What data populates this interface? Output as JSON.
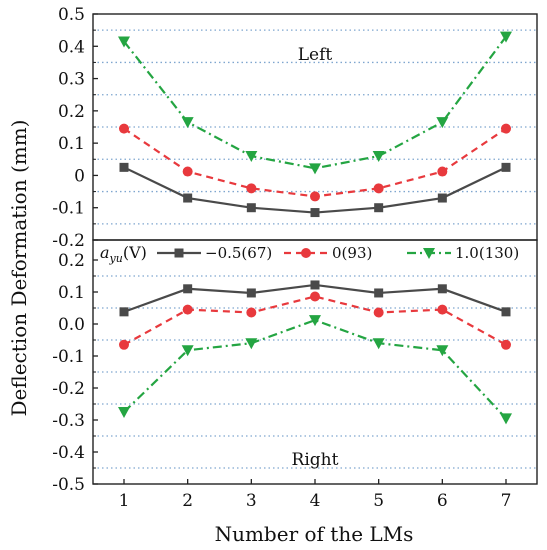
{
  "chart_data": {
    "type": "line",
    "xlabel": "Number of the LMs",
    "ylabel": "Deflection Deformation (mm)",
    "categories": [
      1,
      2,
      3,
      4,
      5,
      6,
      7
    ],
    "x_ticks": [
      "1",
      "2",
      "3",
      "4",
      "5",
      "6",
      "7"
    ],
    "legend": {
      "title_main": "a",
      "title_sub": "yu",
      "title_suffix": "(V)",
      "placement": "between panels, top of lower panel"
    },
    "grid": "horizontal dotted lines at half-ticks",
    "panels": [
      {
        "label": "Left",
        "ylim": [
          -0.2,
          0.5
        ],
        "y_ticks": [
          "-0.2",
          "-0.1",
          "0",
          "0.1",
          "0.2",
          "0.3",
          "0.4",
          "0.5"
        ],
        "y_tick_values": [
          -0.2,
          -0.1,
          0,
          0.1,
          0.2,
          0.3,
          0.4,
          0.5
        ],
        "grid_values": [
          -0.15,
          -0.05,
          0.05,
          0.15,
          0.25,
          0.35,
          0.45
        ],
        "series": [
          {
            "name": "−0.5(67)",
            "values": [
              0.025,
              -0.07,
              -0.1,
              -0.115,
              -0.1,
              -0.07,
              0.025
            ]
          },
          {
            "name": "0(93)",
            "values": [
              0.145,
              0.012,
              -0.04,
              -0.065,
              -0.04,
              0.012,
              0.145
            ]
          },
          {
            "name": "1.0(130)",
            "values": [
              0.415,
              0.165,
              0.06,
              0.022,
              0.06,
              0.165,
              0.43
            ]
          }
        ]
      },
      {
        "label": "Right",
        "ylim": [
          -0.5,
          0.2
        ],
        "y_ticks": [
          "-0.5",
          "-0.4",
          "-0.3",
          "-0.2",
          "-0.1",
          "0.0",
          "0.1",
          "0.2"
        ],
        "y_tick_values": [
          -0.5,
          -0.4,
          -0.3,
          -0.2,
          -0.1,
          0.0,
          0.1,
          0.2
        ],
        "grid_values": [
          -0.45,
          -0.35,
          -0.25,
          -0.15,
          -0.05,
          0.05,
          0.15
        ],
        "series": [
          {
            "name": "−0.5(67)",
            "values": [
              0.038,
              0.11,
              0.097,
              0.122,
              0.097,
              0.11,
              0.038
            ]
          },
          {
            "name": "0(93)",
            "values": [
              -0.065,
              0.045,
              0.036,
              0.086,
              0.036,
              0.045,
              -0.065
            ]
          },
          {
            "name": "1.0(130)",
            "values": [
              -0.275,
              -0.082,
              -0.06,
              0.012,
              -0.06,
              -0.082,
              -0.295
            ]
          }
        ]
      }
    ],
    "series_styles": [
      {
        "name": "−0.5(67)",
        "color": "#4a4a4a",
        "marker": "square",
        "dash": "solid"
      },
      {
        "name": "0(93)",
        "color": "#e8393d",
        "marker": "circle",
        "dash": "dashed"
      },
      {
        "name": "1.0(130)",
        "color": "#24a542",
        "marker": "triangle-down",
        "dash": "dash-dot"
      }
    ],
    "grid_color": "#7fa6cf"
  }
}
